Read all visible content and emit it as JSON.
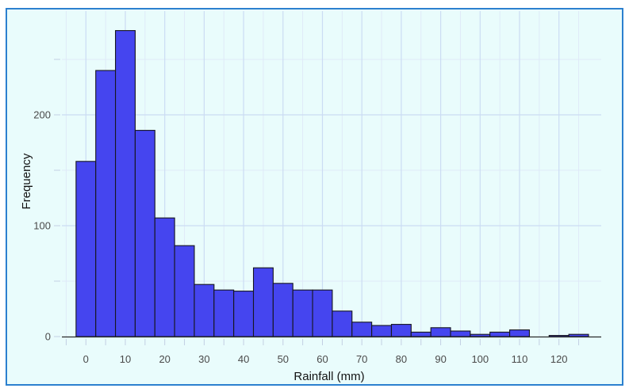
{
  "figure": {
    "frame_border_color": "#2c80cf",
    "panel_background": "#e9fcfc",
    "outer_background": "#ffffff",
    "axis_line_color": "#2a2a2a",
    "major_grid_color": "#cbdcf3",
    "minor_grid_color": "#dfeaf8",
    "tick_mark_color": "#c2cfe3",
    "tick_label_color": "#4a4a4a"
  },
  "chart_data": {
    "type": "bar",
    "subtype": "histogram",
    "title": "",
    "xlabel": "Rainfall (mm)",
    "ylabel": "Frequency",
    "bar_fill": "#4545ef",
    "bar_border": "#16161e",
    "bin_width": 5,
    "bin_centers": [
      0,
      5,
      10,
      15,
      20,
      25,
      30,
      35,
      40,
      45,
      50,
      55,
      60,
      65,
      70,
      75,
      80,
      85,
      90,
      95,
      100,
      105,
      110,
      115,
      120,
      125
    ],
    "values": [
      158,
      240,
      276,
      186,
      107,
      82,
      47,
      42,
      41,
      62,
      48,
      42,
      42,
      23,
      13,
      10,
      11,
      4,
      8,
      5,
      2,
      4,
      6,
      0,
      1,
      2
    ],
    "x_tick_labels": [
      0,
      10,
      20,
      30,
      40,
      50,
      60,
      70,
      80,
      90,
      100,
      110,
      120
    ],
    "x_minor_ticks": [
      -5,
      5,
      15,
      25,
      35,
      45,
      55,
      65,
      75,
      85,
      95,
      105,
      115,
      125
    ],
    "y_tick_labels": [
      0,
      100,
      200
    ],
    "y_major_gridlines": [
      100,
      200
    ],
    "y_minor_gridlines": [
      50,
      150,
      250
    ],
    "y_tick_marks": [
      0,
      50,
      100,
      150,
      200,
      250
    ],
    "xlim": [
      -7.5,
      132.5
    ],
    "ylim": [
      0,
      293
    ],
    "grid": true,
    "legend": false
  }
}
